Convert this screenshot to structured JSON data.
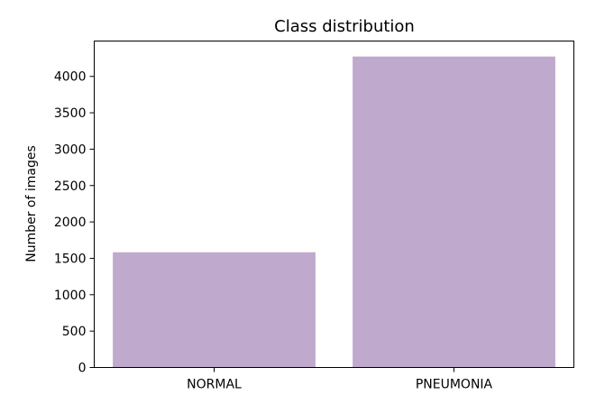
{
  "chart_data": {
    "type": "bar",
    "title": "Class distribution",
    "xlabel": "",
    "ylabel": "Number of images",
    "categories": [
      "NORMAL",
      "PNEUMONIA"
    ],
    "values": [
      1583,
      4273
    ],
    "ylim": [
      0,
      4486
    ],
    "yticks": [
      0,
      500,
      1000,
      1500,
      2000,
      2500,
      3000,
      3500,
      4000
    ],
    "grid": false,
    "legend": "none",
    "colors": {
      "bar": "#bfa9cc",
      "axis": "#000000",
      "background": "#ffffff"
    }
  }
}
